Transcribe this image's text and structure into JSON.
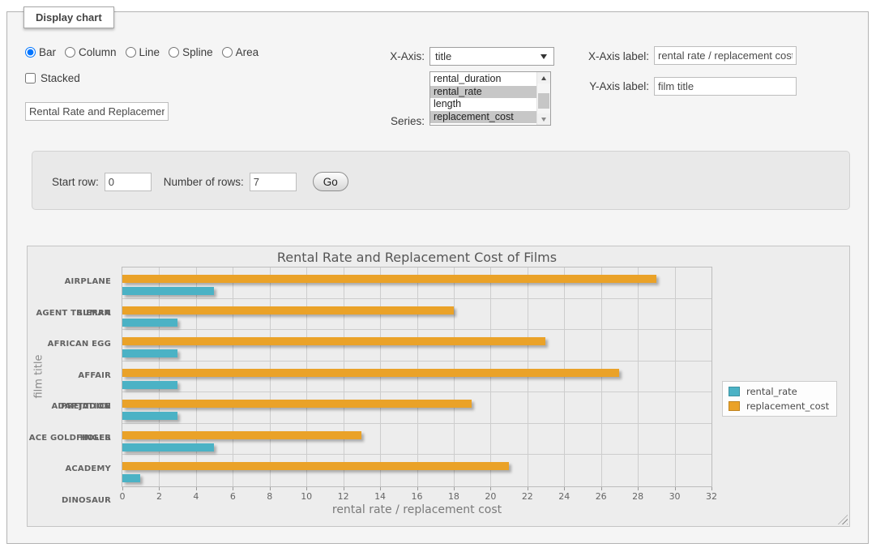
{
  "panel": {
    "legend_title": "Display chart",
    "chart_types": [
      {
        "label": "Bar",
        "checked": true
      },
      {
        "label": "Column",
        "checked": false
      },
      {
        "label": "Line",
        "checked": false
      },
      {
        "label": "Spline",
        "checked": false
      },
      {
        "label": "Area",
        "checked": false
      }
    ],
    "stacked": {
      "label": "Stacked",
      "checked": false
    },
    "title_input": {
      "value": "Rental Rate and Replacement Cost of Films"
    },
    "x_axis": {
      "label": "X-Axis:",
      "selected": "title"
    },
    "series_select": {
      "label": "Series:",
      "options": [
        {
          "label": "rental_duration",
          "selected": false
        },
        {
          "label": "rental_rate",
          "selected": true
        },
        {
          "label": "length",
          "selected": false
        },
        {
          "label": "replacement_cost",
          "selected": true
        }
      ]
    },
    "x_axis_label": {
      "label": "X-Axis label:",
      "value": "rental rate / replacement cost"
    },
    "y_axis_label": {
      "label": "Y-Axis label:",
      "value": "film title"
    }
  },
  "row_controls": {
    "start_row": {
      "label": "Start row:",
      "value": "0"
    },
    "num_rows": {
      "label": "Number of rows:",
      "value": "7"
    },
    "go_label": "Go"
  },
  "chart_data": {
    "type": "bar",
    "orientation": "horizontal",
    "title": "Rental Rate and Replacement Cost of Films",
    "xlabel": "rental rate / replacement cost",
    "ylabel": "film title",
    "categories": [
      "AIRPLANE SIERRA",
      "AGENT TRUMAN",
      "AFRICAN EGG",
      "AFFAIR PREJUDICE",
      "ADAPTATION HOLES",
      "ACE GOLDFINGER",
      "ACADEMY DINOSAUR"
    ],
    "categories_order": "top-to-bottom",
    "series": [
      {
        "name": "rental_rate",
        "color": "#4bb2c5",
        "values": [
          4.99,
          2.99,
          2.99,
          2.99,
          2.99,
          4.99,
          0.99
        ]
      },
      {
        "name": "replacement_cost",
        "color": "#eaa228",
        "values": [
          28.99,
          17.99,
          22.99,
          26.99,
          18.99,
          12.99,
          20.99
        ]
      }
    ],
    "series_order_within_group_top_first": [
      "replacement_cost",
      "rental_rate"
    ],
    "xlim": [
      0,
      32
    ],
    "x_ticks": [
      0,
      2,
      4,
      6,
      8,
      10,
      12,
      14,
      16,
      18,
      20,
      22,
      24,
      26,
      28,
      30,
      32
    ],
    "grid": true,
    "legend_position": "right"
  }
}
